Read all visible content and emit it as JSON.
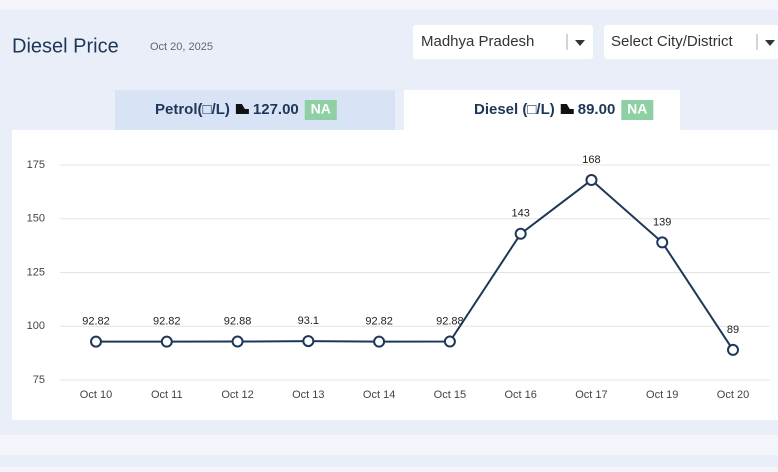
{
  "header": {
    "title": "Diesel Price",
    "date": "Oct 20, 2025"
  },
  "filters": {
    "state": "Madhya Pradesh",
    "city": "Select City/District"
  },
  "tabs": [
    {
      "label": "Petrol(□/L)",
      "price": "127.00",
      "badge": "NA"
    },
    {
      "label": "Diesel (□/L)",
      "price": "89.00",
      "badge": "NA"
    }
  ],
  "chart_data": {
    "type": "line",
    "categories": [
      "Oct 10",
      "Oct 11",
      "Oct 12",
      "Oct 13",
      "Oct 14",
      "Oct 15",
      "Oct 16",
      "Oct 17",
      "Oct 19",
      "Oct 20"
    ],
    "values": [
      92.82,
      92.82,
      92.88,
      93.1,
      92.82,
      92.88,
      143,
      168,
      139,
      89
    ],
    "color": "#1e3758",
    "ylim": [
      75,
      175
    ],
    "yticks": [
      75,
      100,
      125,
      150,
      175
    ],
    "grid": true
  }
}
